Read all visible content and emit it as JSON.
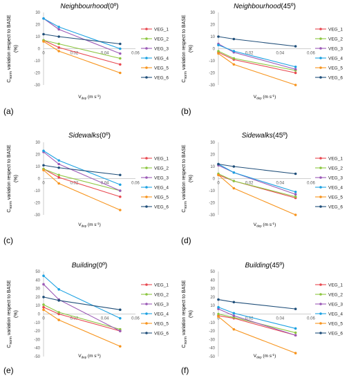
{
  "figure": {
    "y_axis_label": "C_norm variation respect to BASE (%)",
    "y_axis_label_main": "C",
    "y_axis_label_sub": "norm",
    "y_axis_label_rest": " variation respect to BASE",
    "y_axis_label_unit": "(%)",
    "x_axis_label": "V_dep (m s-1)",
    "x_axis_label_main": "V",
    "x_axis_label_sub": "dep",
    "x_axis_label_rest": " (m s",
    "x_axis_label_sup": "-1",
    "x_axis_label_close": ")",
    "legend_labels": [
      "VEG_1",
      "VEG_2",
      "VEG_3",
      "VEG_4",
      "VEG_5",
      "VEG_6"
    ],
    "series_colors": [
      "#e8474f",
      "#8cc63f",
      "#9b59b6",
      "#1ba1e2",
      "#f7941d",
      "#1f4e79"
    ]
  },
  "chart_data": [
    {
      "panel": "(a)",
      "title_name": "Neighbourhood",
      "title_angle": "(0º)",
      "type": "line",
      "x": [
        0,
        0.01,
        0.05
      ],
      "xticks": [
        "0",
        "0.02",
        "0.04",
        "0.06"
      ],
      "xlim": [
        0,
        0.06
      ],
      "yticks": [
        "30",
        "20",
        "10",
        "0",
        "-10",
        "-20",
        "-30"
      ],
      "ylim": [
        -30,
        30
      ],
      "series": [
        {
          "name": "VEG_1",
          "values": [
            7,
            1,
            -13
          ]
        },
        {
          "name": "VEG_2",
          "values": [
            7,
            4,
            -8
          ]
        },
        {
          "name": "VEG_3",
          "values": [
            25,
            16,
            -4
          ]
        },
        {
          "name": "VEG_4",
          "values": [
            25,
            18,
            0
          ]
        },
        {
          "name": "VEG_5",
          "values": [
            6,
            -2,
            -20
          ]
        },
        {
          "name": "VEG_6",
          "values": [
            12,
            10,
            4
          ]
        }
      ]
    },
    {
      "panel": "(b)",
      "title_name": "Neighbourhood",
      "title_angle": "(45º)",
      "type": "line",
      "x": [
        0,
        0.01,
        0.05
      ],
      "xticks": [
        "0",
        "0.02",
        "0.04",
        "0.06"
      ],
      "xlim": [
        0,
        0.06
      ],
      "yticks": [
        "30",
        "20",
        "10",
        "0",
        "-10",
        "-20",
        "-30"
      ],
      "ylim": [
        -30,
        30
      ],
      "series": [
        {
          "name": "VEG_1",
          "values": [
            -3,
            -9,
            -20
          ]
        },
        {
          "name": "VEG_2",
          "values": [
            -2,
            -8,
            -18
          ]
        },
        {
          "name": "VEG_3",
          "values": [
            4,
            -3,
            -17
          ]
        },
        {
          "name": "VEG_4",
          "values": [
            3,
            -2,
            -15
          ]
        },
        {
          "name": "VEG_5",
          "values": [
            -4,
            -13,
            -30
          ]
        },
        {
          "name": "VEG_6",
          "values": [
            10,
            8,
            2
          ]
        }
      ]
    },
    {
      "panel": "(c)",
      "title_name": "Sidewalks",
      "title_angle": "(0º)",
      "type": "line",
      "x": [
        0,
        0.01,
        0.05
      ],
      "xticks": [
        "0",
        "0.02",
        "0.04",
        "0.06"
      ],
      "xlim": [
        0,
        0.06
      ],
      "yticks": [
        "30",
        "20",
        "10",
        "0",
        "-10",
        "-20",
        "-30"
      ],
      "ylim": [
        -30,
        30
      ],
      "series": [
        {
          "name": "VEG_1",
          "values": [
            8,
            1,
            -15
          ]
        },
        {
          "name": "VEG_2",
          "values": [
            8,
            3,
            -10
          ]
        },
        {
          "name": "VEG_3",
          "values": [
            22,
            12,
            -10
          ]
        },
        {
          "name": "VEG_4",
          "values": [
            23,
            15,
            -5
          ]
        },
        {
          "name": "VEG_5",
          "values": [
            7,
            -4,
            -26
          ]
        },
        {
          "name": "VEG_6",
          "values": [
            11,
            9,
            3
          ]
        }
      ]
    },
    {
      "panel": "(d)",
      "title_name": "Sidewalks",
      "title_angle": "(45º)",
      "type": "line",
      "x": [
        0,
        0.01,
        0.05
      ],
      "xticks": [
        "0",
        "0.02",
        "0.04",
        "0.06"
      ],
      "xlim": [
        0,
        0.06
      ],
      "yticks": [
        "30",
        "20",
        "10",
        "0",
        "-10",
        "-20",
        "-30"
      ],
      "ylim": [
        -30,
        30
      ],
      "series": [
        {
          "name": "VEG_1",
          "values": [
            3,
            -2,
            -16
          ]
        },
        {
          "name": "VEG_2",
          "values": [
            4,
            -2,
            -15
          ]
        },
        {
          "name": "VEG_3",
          "values": [
            11,
            5,
            -13
          ]
        },
        {
          "name": "VEG_4",
          "values": [
            12,
            5,
            -11
          ]
        },
        {
          "name": "VEG_5",
          "values": [
            3,
            -8,
            -30
          ]
        },
        {
          "name": "VEG_6",
          "values": [
            12,
            10,
            4
          ]
        }
      ]
    },
    {
      "panel": "(e)",
      "title_name": "Building",
      "title_angle": "(0º)",
      "type": "line",
      "x": [
        0,
        0.01,
        0.05
      ],
      "xticks": [
        "0",
        "0.02",
        "0.04",
        "0.06"
      ],
      "xlim": [
        0,
        0.06
      ],
      "yticks": [
        "50",
        "40",
        "30",
        "20",
        "10",
        "0",
        "-10",
        "-20",
        "-30",
        "-40",
        "-50"
      ],
      "ylim": [
        -50,
        50
      ],
      "series": [
        {
          "name": "VEG_1",
          "values": [
            8,
            0,
            -20
          ]
        },
        {
          "name": "VEG_2",
          "values": [
            11,
            2,
            -18
          ]
        },
        {
          "name": "VEG_3",
          "values": [
            35,
            17,
            -20
          ]
        },
        {
          "name": "VEG_4",
          "values": [
            45,
            29,
            -5
          ]
        },
        {
          "name": "VEG_5",
          "values": [
            5,
            -7,
            -38
          ]
        },
        {
          "name": "VEG_6",
          "values": [
            20,
            16,
            5
          ]
        }
      ]
    },
    {
      "panel": "(f)",
      "title_name": "Building",
      "title_angle": "(45º)",
      "type": "line",
      "x": [
        0,
        0.01,
        0.05
      ],
      "xticks": [
        "0",
        "0.02",
        "0.04",
        "0.06"
      ],
      "xlim": [
        0,
        0.06
      ],
      "yticks": [
        "50",
        "40",
        "30",
        "20",
        "10",
        "0",
        "-10",
        "-20",
        "-30",
        "-40",
        "-50"
      ],
      "ylim": [
        -50,
        50
      ],
      "series": [
        {
          "name": "VEG_1",
          "values": [
            -2,
            -5,
            -25
          ]
        },
        {
          "name": "VEG_2",
          "values": [
            0,
            -4,
            -22
          ]
        },
        {
          "name": "VEG_3",
          "values": [
            6,
            -2,
            -25
          ]
        },
        {
          "name": "VEG_4",
          "values": [
            8,
            1,
            -17
          ]
        },
        {
          "name": "VEG_5",
          "values": [
            -3,
            -18,
            -46
          ]
        },
        {
          "name": "VEG_6",
          "values": [
            17,
            14,
            6
          ]
        }
      ]
    }
  ]
}
